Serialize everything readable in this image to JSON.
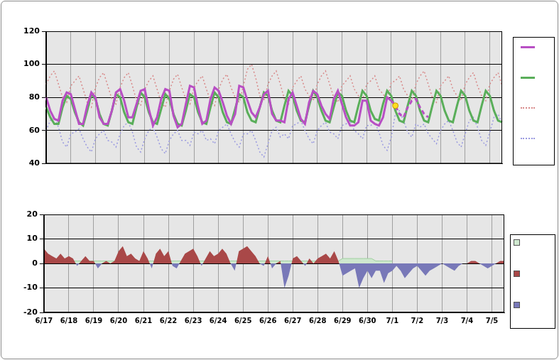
{
  "chart_data": [
    {
      "type": "line",
      "categories": [
        "6/17",
        null,
        null,
        null,
        null,
        null,
        "6/18",
        null,
        null,
        null,
        null,
        null,
        "6/19",
        null,
        null,
        null,
        null,
        null,
        "6/20",
        null,
        null,
        null,
        null,
        null,
        "6/21",
        null,
        null,
        null,
        null,
        null,
        "6/22",
        null,
        null,
        null,
        null,
        null,
        "6/23",
        null,
        null,
        null,
        null,
        null,
        "6/24",
        null,
        null,
        null,
        null,
        null,
        "6/25",
        null,
        null,
        null,
        null,
        null,
        "6/26",
        null,
        null,
        null,
        null,
        null,
        "6/27",
        null,
        null,
        null,
        null,
        null,
        "6/28",
        null,
        null,
        null,
        null,
        null,
        "6/29",
        null,
        null,
        null,
        null,
        null,
        "6/30",
        null,
        null,
        null,
        null,
        null,
        "7/1",
        null,
        null,
        null,
        null,
        null,
        "7/2",
        null,
        null,
        null,
        null,
        null,
        "7/3",
        null,
        null,
        null,
        null,
        null,
        "7/4",
        null,
        null,
        null,
        null,
        null,
        "7/5",
        null,
        null,
        null
      ],
      "series": [
        {
          "color": "#b84fc4",
          "values": [
            80,
            72,
            67,
            66,
            78,
            83,
            82,
            73,
            64,
            64,
            75,
            83,
            80,
            68,
            64,
            64,
            72,
            83,
            85,
            78,
            68,
            68,
            76,
            84,
            85,
            73,
            63,
            68,
            79,
            85,
            84,
            69,
            62,
            64,
            76,
            87,
            86,
            74,
            64,
            66,
            79,
            86,
            84,
            77,
            69,
            64,
            70,
            87,
            86,
            78,
            71,
            68,
            74,
            82,
            84,
            70,
            66,
            66,
            65,
            79,
            83,
            75,
            67,
            64,
            77,
            84,
            82,
            75,
            70,
            67,
            79,
            84,
            76,
            68,
            63,
            63,
            65,
            78,
            78,
            66,
            64,
            63,
            68,
            80,
            78,
            null,
            null,
            null,
            null,
            null,
            null,
            null,
            null,
            null,
            null,
            null,
            null,
            null,
            null,
            null,
            null,
            null,
            null,
            null,
            null,
            null,
            null,
            null,
            null,
            null,
            null,
            null
          ]
        },
        {
          "color": "#b84fc4",
          "line_style": "dashed",
          "values": [
            null,
            null,
            null,
            null,
            null,
            null,
            null,
            null,
            null,
            null,
            null,
            null,
            null,
            null,
            null,
            null,
            null,
            null,
            null,
            null,
            null,
            null,
            null,
            null,
            null,
            null,
            null,
            null,
            null,
            null,
            null,
            null,
            null,
            null,
            null,
            null,
            null,
            null,
            null,
            null,
            null,
            null,
            null,
            null,
            null,
            null,
            null,
            null,
            null,
            null,
            null,
            null,
            null,
            null,
            null,
            null,
            null,
            null,
            null,
            null,
            null,
            null,
            null,
            null,
            null,
            null,
            null,
            null,
            null,
            null,
            null,
            null,
            null,
            null,
            null,
            null,
            null,
            null,
            null,
            null,
            null,
            null,
            null,
            null,
            78,
            75,
            70,
            68,
            74,
            78,
            79,
            74,
            70,
            68,
            null,
            null,
            null,
            null,
            null,
            null,
            null,
            null,
            null,
            null,
            null,
            null,
            null,
            null,
            null,
            null,
            null,
            null
          ]
        },
        {
          "color": "#5aae5a",
          "values": [
            74,
            68,
            64,
            64,
            74,
            81,
            79,
            71,
            65,
            63,
            72,
            82,
            79,
            70,
            64,
            63,
            72,
            82,
            80,
            71,
            65,
            64,
            74,
            83,
            80,
            71,
            65,
            64,
            73,
            82,
            79,
            70,
            64,
            63,
            72,
            82,
            80,
            71,
            65,
            64,
            74,
            83,
            80,
            71,
            65,
            64,
            73,
            82,
            80,
            71,
            66,
            65,
            74,
            83,
            81,
            72,
            66,
            65,
            75,
            84,
            81,
            72,
            66,
            65,
            75,
            84,
            80,
            72,
            66,
            65,
            74,
            83,
            81,
            72,
            66,
            65,
            75,
            84,
            81,
            72,
            67,
            66,
            76,
            84,
            81,
            72,
            66,
            65,
            75,
            84,
            81,
            72,
            66,
            65,
            75,
            84,
            81,
            72,
            66,
            65,
            75,
            84,
            81,
            72,
            66,
            65,
            75,
            84,
            81,
            72,
            66,
            65
          ]
        },
        {
          "color": "#d88a8a",
          "line_style": "dotted",
          "values": [
            88,
            93,
            96,
            88,
            80,
            77,
            87,
            90,
            93,
            85,
            77,
            74,
            86,
            92,
            95,
            87,
            79,
            76,
            86,
            92,
            95,
            87,
            78,
            75,
            85,
            90,
            93,
            85,
            77,
            74,
            84,
            91,
            94,
            86,
            79,
            76,
            86,
            90,
            93,
            85,
            78,
            75,
            85,
            91,
            94,
            86,
            80,
            77,
            87,
            97,
            100,
            92,
            81,
            78,
            88,
            93,
            96,
            88,
            79,
            76,
            86,
            90,
            93,
            85,
            81,
            78,
            88,
            93,
            96,
            88,
            80,
            77,
            87,
            90,
            93,
            85,
            81,
            78,
            88,
            90,
            93,
            85,
            82,
            79,
            89,
            90,
            93,
            85,
            81,
            78,
            88,
            93,
            96,
            88,
            80,
            77,
            87,
            90,
            93,
            85,
            81,
            78,
            88,
            92,
            95,
            87,
            81,
            78,
            88,
            92,
            95,
            87
          ]
        },
        {
          "color": "#9a9ae0",
          "line_style": "dotted",
          "values": [
            60,
            66,
            68,
            62,
            53,
            50,
            58,
            59,
            61,
            55,
            50,
            47,
            55,
            58,
            60,
            54,
            53,
            50,
            58,
            63,
            65,
            59,
            50,
            47,
            55,
            60,
            62,
            56,
            49,
            46,
            54,
            58,
            60,
            54,
            54,
            51,
            59,
            58,
            60,
            54,
            55,
            52,
            60,
            62,
            64,
            58,
            53,
            50,
            58,
            58,
            60,
            54,
            47,
            44,
            52,
            60,
            62,
            56,
            58,
            55,
            63,
            64,
            66,
            60,
            55,
            52,
            60,
            63,
            65,
            59,
            58,
            55,
            63,
            64,
            66,
            60,
            58,
            55,
            63,
            63,
            65,
            59,
            51,
            48,
            56,
            70,
            72,
            66,
            59,
            56,
            64,
            62,
            64,
            58,
            55,
            52,
            60,
            64,
            66,
            60,
            53,
            50,
            58,
            66,
            68,
            62,
            54,
            51,
            59,
            68,
            70,
            64
          ]
        },
        {
          "type": "scatter",
          "marker": "circle",
          "color": "#ffdd22",
          "values": [
            null,
            null,
            null,
            null,
            null,
            null,
            null,
            null,
            null,
            null,
            null,
            null,
            null,
            null,
            null,
            null,
            null,
            null,
            null,
            null,
            null,
            null,
            null,
            null,
            null,
            null,
            null,
            null,
            null,
            null,
            null,
            null,
            null,
            null,
            null,
            null,
            null,
            null,
            null,
            null,
            null,
            null,
            null,
            null,
            null,
            null,
            null,
            null,
            null,
            null,
            null,
            null,
            null,
            null,
            null,
            null,
            null,
            null,
            null,
            null,
            null,
            null,
            null,
            null,
            null,
            null,
            null,
            null,
            null,
            null,
            null,
            null,
            null,
            null,
            null,
            null,
            null,
            null,
            null,
            null,
            null,
            null,
            null,
            null,
            null,
            75,
            null,
            null,
            null,
            null,
            null,
            null,
            null,
            null,
            null,
            null,
            null,
            null,
            null,
            null,
            null,
            null,
            null,
            null,
            null,
            null,
            null,
            null,
            null,
            null,
            null,
            null
          ]
        }
      ],
      "ylim": [
        40,
        120
      ],
      "yticks": [
        40,
        60,
        80,
        100,
        120
      ],
      "grid": true,
      "tick_labels": "y",
      "legend": "right"
    },
    {
      "type": "area",
      "categories": [
        "6/17",
        null,
        null,
        null,
        null,
        null,
        "6/18",
        null,
        null,
        null,
        null,
        null,
        "6/19",
        null,
        null,
        null,
        null,
        null,
        "6/20",
        null,
        null,
        null,
        null,
        null,
        "6/21",
        null,
        null,
        null,
        null,
        null,
        "6/22",
        null,
        null,
        null,
        null,
        null,
        "6/23",
        null,
        null,
        null,
        null,
        null,
        "6/24",
        null,
        null,
        null,
        null,
        null,
        "6/25",
        null,
        null,
        null,
        null,
        null,
        "6/26",
        null,
        null,
        null,
        null,
        null,
        "6/27",
        null,
        null,
        null,
        null,
        null,
        "6/28",
        null,
        null,
        null,
        null,
        null,
        "6/29",
        null,
        null,
        null,
        null,
        null,
        "6/30",
        null,
        null,
        null,
        null,
        null,
        "7/1",
        null,
        null,
        null,
        null,
        null,
        "7/2",
        null,
        null,
        null,
        null,
        null,
        "7/3",
        null,
        null,
        null,
        null,
        null,
        "7/4",
        null,
        null,
        null,
        null,
        null,
        "7/5",
        null,
        null,
        null
      ],
      "series": [
        {
          "color": "#cfe8cf",
          "values": [
            null,
            null,
            null,
            null,
            null,
            null,
            1,
            1,
            1,
            1,
            1,
            1,
            1,
            1,
            1,
            1,
            1,
            1,
            1,
            1,
            1,
            1,
            1,
            1,
            1,
            1,
            1,
            1,
            1,
            1,
            1,
            1,
            1,
            1,
            1,
            1,
            1,
            1,
            1,
            1,
            1,
            1,
            1,
            1,
            1,
            1,
            1,
            1,
            1,
            1,
            1,
            1,
            1,
            1,
            1,
            1,
            1,
            1,
            1,
            1,
            1,
            1,
            1,
            1,
            1,
            1,
            1,
            1,
            1,
            1,
            1,
            1,
            2,
            2,
            2,
            2,
            2,
            2,
            2,
            2,
            1,
            1,
            1,
            1,
            1,
            null,
            null,
            null,
            null,
            null,
            null,
            null,
            null,
            null,
            null,
            null,
            null,
            null,
            null,
            null,
            null,
            null,
            null,
            null,
            null,
            null,
            null,
            null,
            null,
            null,
            null,
            null
          ]
        },
        {
          "colors": [
            "#a94848",
            "#7878b8"
          ],
          "values": [
            6,
            4,
            3,
            2,
            4,
            2,
            3,
            2,
            -1,
            1,
            3,
            1,
            1,
            -2,
            0,
            1,
            0,
            1,
            5,
            7,
            3,
            4,
            2,
            1,
            5,
            2,
            -2,
            4,
            6,
            3,
            5,
            -1,
            -2,
            1,
            4,
            5,
            6,
            3,
            -1,
            2,
            5,
            3,
            4,
            6,
            4,
            0,
            -3,
            5,
            6,
            7,
            5,
            3,
            0,
            -1,
            3,
            -2,
            0,
            1,
            -10,
            -5,
            2,
            3,
            1,
            -1,
            2,
            0,
            2,
            3,
            4,
            2,
            5,
            1,
            -5,
            -4,
            -3,
            -2,
            -10,
            -6,
            -3,
            -6,
            -3,
            -3,
            -8,
            -4,
            -3,
            -1,
            -3,
            -6,
            -4,
            -2,
            -1,
            -3,
            -5,
            -3,
            -2,
            -1,
            0,
            -1,
            -2,
            -3,
            -1,
            0,
            0,
            1,
            1,
            0,
            -1,
            -2,
            -1,
            0,
            1,
            1
          ]
        }
      ],
      "ylim": [
        -20,
        20
      ],
      "yticks": [
        -20,
        -10,
        0,
        10,
        20
      ],
      "grid": true,
      "legend": "right"
    }
  ]
}
